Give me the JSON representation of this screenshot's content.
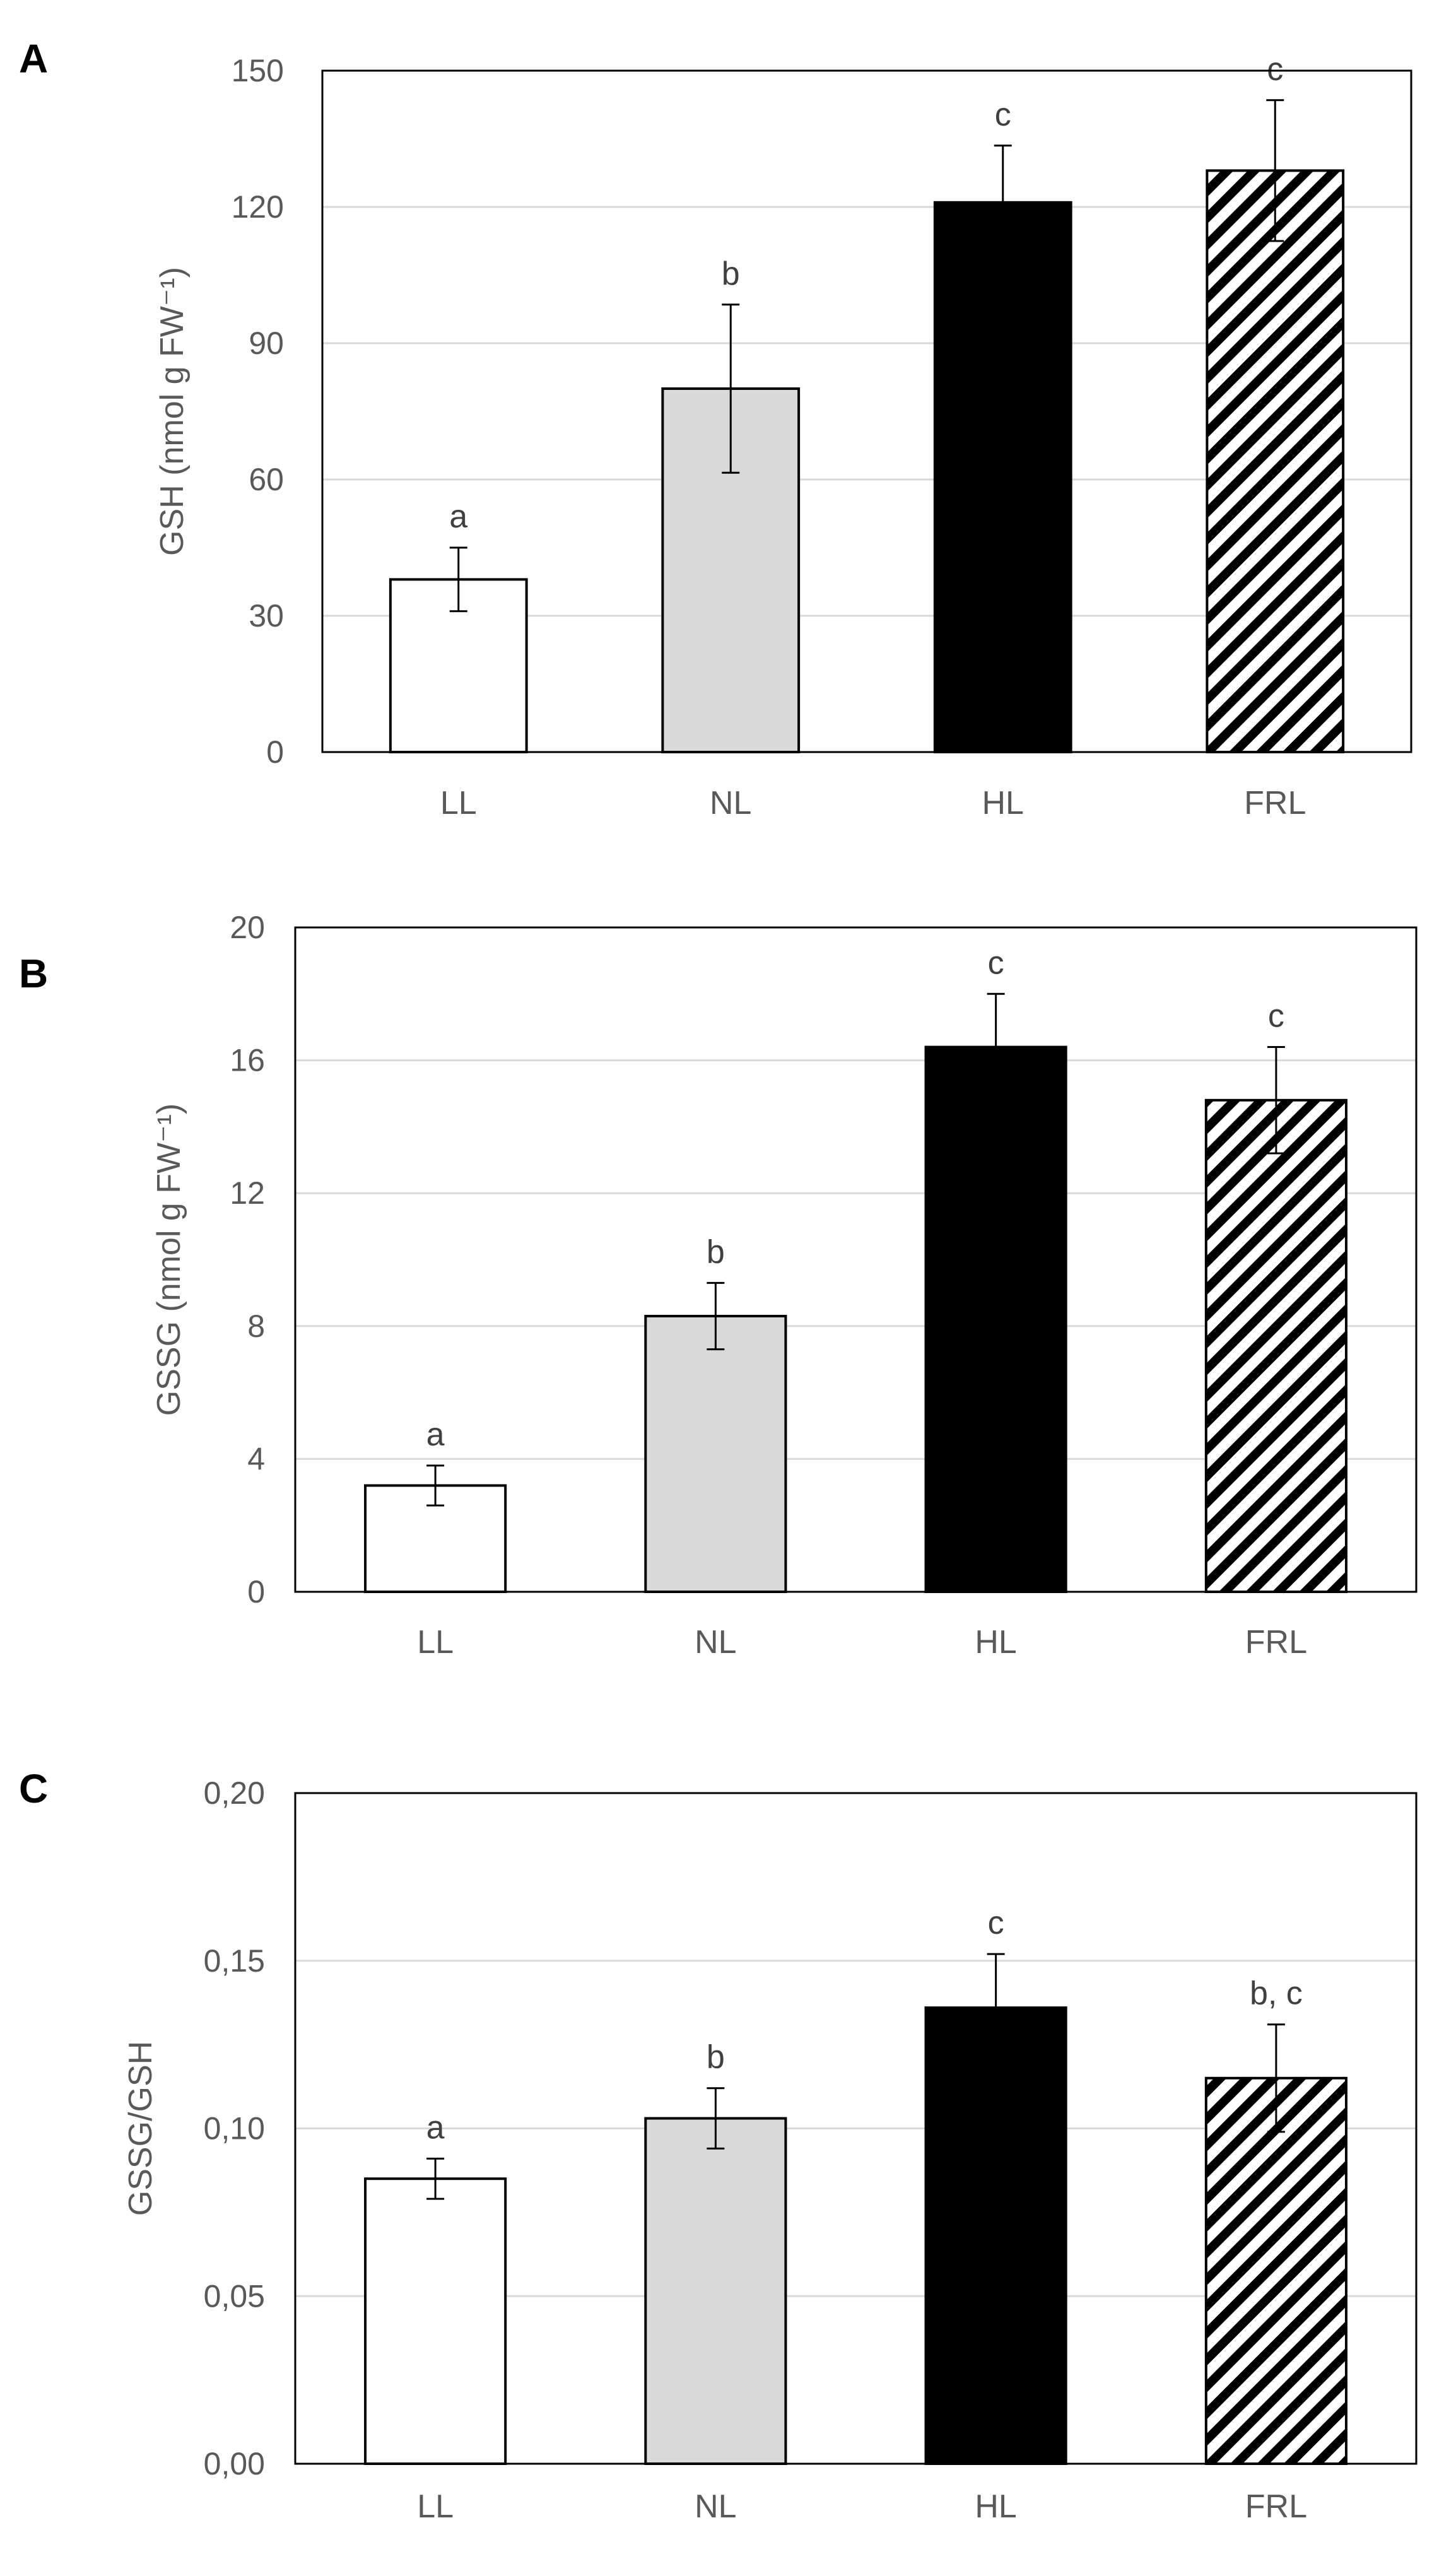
{
  "chart_data": [
    {
      "type": "bar",
      "panel": "A",
      "ylabel": "GSH (nmol g FW⁻¹)",
      "ylim": [
        0,
        150
      ],
      "yticks": [
        0,
        30,
        60,
        90,
        120,
        150
      ],
      "ytick_labels": [
        "0",
        "30",
        "60",
        "90",
        "120",
        "150"
      ],
      "categories": [
        "LL",
        "NL",
        "HL",
        "FRL"
      ],
      "values": [
        38,
        80,
        121,
        128
      ],
      "errors": [
        7,
        18.5,
        12.5,
        15.5
      ],
      "letters": [
        "a",
        "b",
        "c",
        "c"
      ]
    },
    {
      "type": "bar",
      "panel": "B",
      "ylabel": "GSSG (nmol g FW⁻¹)",
      "ylim": [
        0,
        20
      ],
      "yticks": [
        0,
        4,
        8,
        12,
        16,
        20
      ],
      "ytick_labels": [
        "0",
        "4",
        "8",
        "12",
        "16",
        "20"
      ],
      "categories": [
        "LL",
        "NL",
        "HL",
        "FRL"
      ],
      "values": [
        3.2,
        8.3,
        16.4,
        14.8
      ],
      "errors": [
        0.6,
        1.0,
        1.6,
        1.6
      ],
      "letters": [
        "a",
        "b",
        "c",
        "c"
      ]
    },
    {
      "type": "bar",
      "panel": "C",
      "ylabel": "GSSG/GSH",
      "ylim": [
        0,
        0.2
      ],
      "yticks": [
        0,
        0.05,
        0.1,
        0.15,
        0.2
      ],
      "ytick_labels": [
        "0,00",
        "0,05",
        "0,10",
        "0,15",
        "0,20"
      ],
      "categories": [
        "LL",
        "NL",
        "HL",
        "FRL"
      ],
      "values": [
        0.085,
        0.103,
        0.136,
        0.115
      ],
      "errors": [
        0.006,
        0.009,
        0.016,
        0.016
      ],
      "letters": [
        "a",
        "b",
        "c",
        "b, c"
      ]
    }
  ],
  "bar_fills": {
    "LL": "#ffffff",
    "NL": "#d9d9d9",
    "HL": "#000000",
    "FRL": "hatch"
  }
}
